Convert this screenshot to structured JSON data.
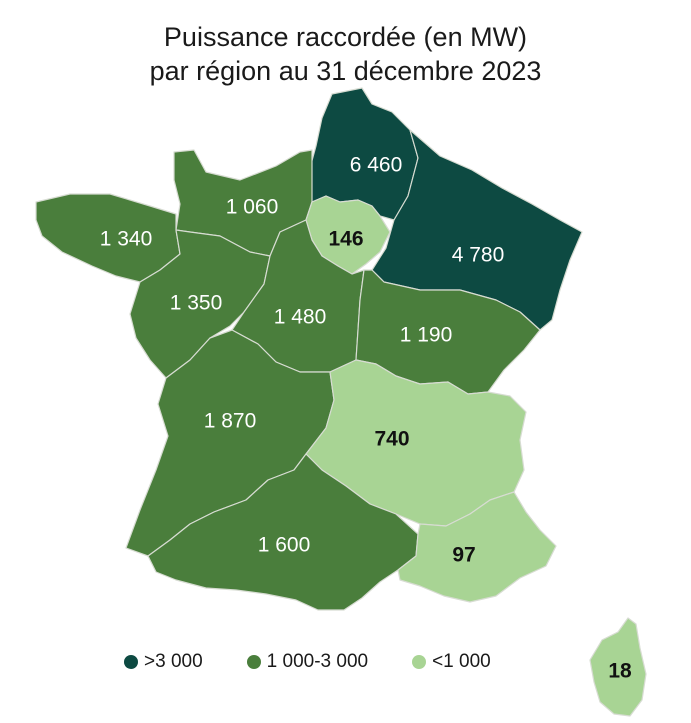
{
  "title": {
    "line1": "Puissance raccordée (en MW)",
    "line2": "par région au 31 décembre 2023"
  },
  "colors": {
    "high": "#0d4a42",
    "mid": "#4a7e3c",
    "low": "#a8d494",
    "label_light": "#ffffff",
    "label_dark": "#111111"
  },
  "legend": [
    {
      "label": ">3 000",
      "class": "high"
    },
    {
      "label": "1 000-3 000",
      "class": "mid"
    },
    {
      "label": "<1 000",
      "class": "low"
    }
  ],
  "regions": [
    {
      "id": "hauts-de-france",
      "value": "6 460",
      "class": "high"
    },
    {
      "id": "grand-est",
      "value": "4 780",
      "class": "high"
    },
    {
      "id": "normandie",
      "value": "1 060",
      "class": "mid"
    },
    {
      "id": "ile-de-france",
      "value": "146",
      "class": "low"
    },
    {
      "id": "bretagne",
      "value": "1 340",
      "class": "mid"
    },
    {
      "id": "pays-de-la-loire",
      "value": "1 350",
      "class": "mid"
    },
    {
      "id": "centre-val-de-loire",
      "value": "1 480",
      "class": "mid"
    },
    {
      "id": "bourgogne-franche-comte",
      "value": "1 190",
      "class": "mid"
    },
    {
      "id": "nouvelle-aquitaine",
      "value": "1 870",
      "class": "mid"
    },
    {
      "id": "auvergne-rhone-alpes",
      "value": "740",
      "class": "low"
    },
    {
      "id": "occitanie",
      "value": "1 600",
      "class": "mid"
    },
    {
      "id": "provence-alpes-cote-dazur",
      "value": "97",
      "class": "low"
    },
    {
      "id": "corse",
      "value": "18",
      "class": "low"
    }
  ]
}
